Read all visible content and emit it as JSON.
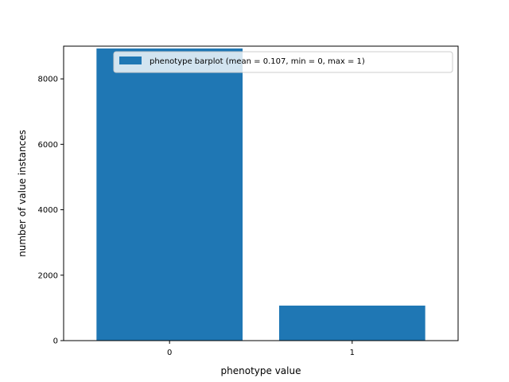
{
  "chart_data": {
    "type": "bar",
    "title": "",
    "xlabel": "phenotype value",
    "ylabel": "number of value instances",
    "categories": [
      "0",
      "1"
    ],
    "series": [
      {
        "name": "phenotype barplot (mean = 0.107, min = 0, max = 1)",
        "values": [
          8930,
          1070
        ],
        "color": "#1f77b4"
      }
    ],
    "ylim": [
      0,
      9000
    ],
    "yticks": [
      0,
      2000,
      4000,
      6000,
      8000
    ],
    "grid": false,
    "legend_position": "upper right"
  }
}
